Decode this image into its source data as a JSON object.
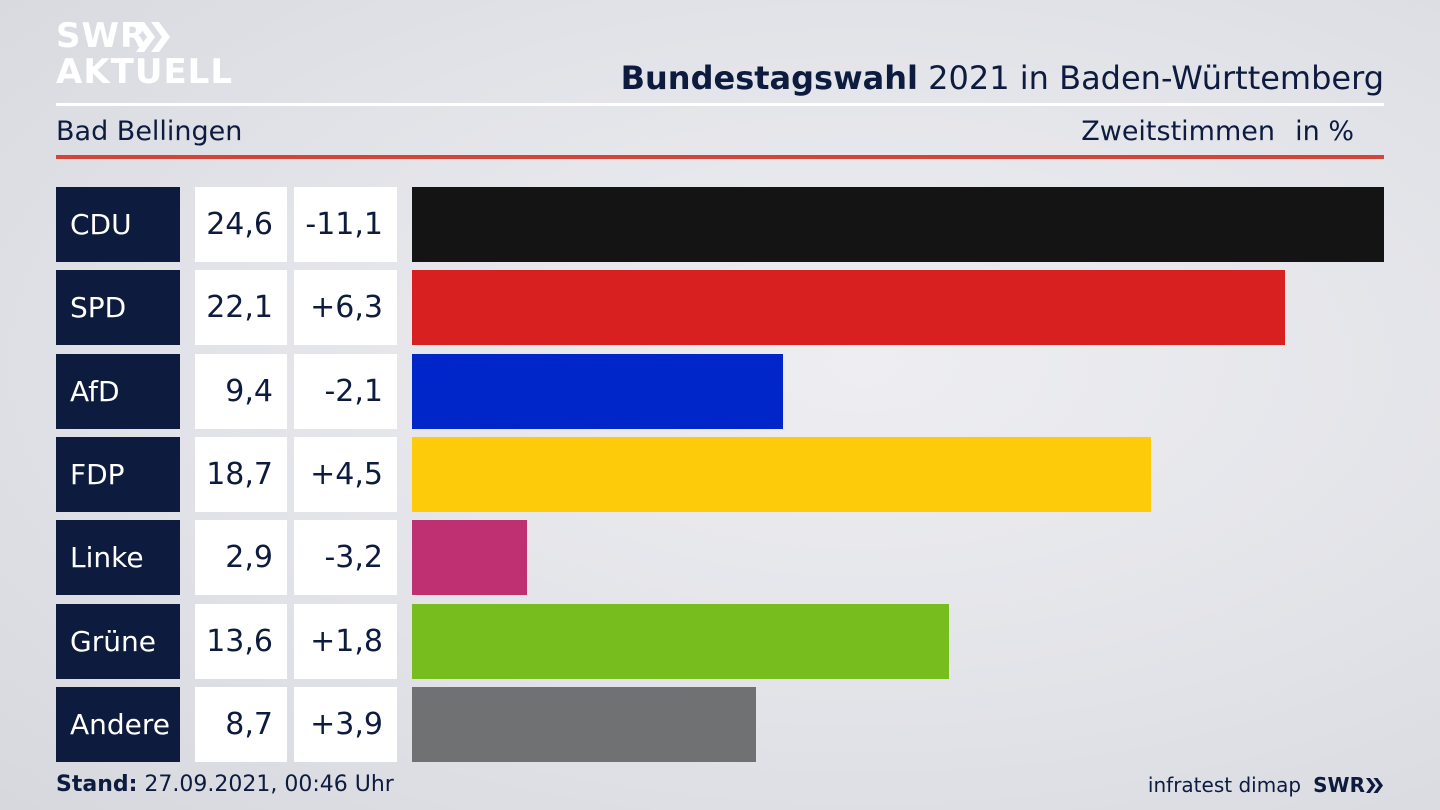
{
  "brand": {
    "line1": "SWR",
    "line2": "AKTUELL"
  },
  "header": {
    "title_bold": "Bundestagswahl",
    "title_rest": " 2021 in Baden-Württemberg",
    "region": "Bad Bellingen",
    "measure": "Zweitstimmen",
    "unit": "in %"
  },
  "colors": {
    "navy": "#0d1b3e",
    "accent_rule": "#d2453a"
  },
  "chart_data": {
    "type": "bar",
    "orientation": "horizontal",
    "categories": [
      "CDU",
      "SPD",
      "AfD",
      "FDP",
      "Linke",
      "Grüne",
      "Andere"
    ],
    "values": [
      24.6,
      22.1,
      9.4,
      18.7,
      2.9,
      13.6,
      8.7
    ],
    "value_labels": [
      "24,6",
      "22,1",
      "9,4",
      "18,7",
      "2,9",
      "13,6",
      "8,7"
    ],
    "change_labels": [
      "-11,1",
      "+6,3",
      "-2,1",
      "+4,5",
      "-3,2",
      "+1,8",
      "+3,9"
    ],
    "changes": [
      -11.1,
      6.3,
      -2.1,
      4.5,
      -3.2,
      1.8,
      3.9
    ],
    "bar_colors": [
      "#141414",
      "#d92020",
      "#0025c8",
      "#fdcb0a",
      "#bf3073",
      "#78bd1e",
      "#707173"
    ],
    "xlim": [
      0,
      24.6
    ]
  },
  "footer": {
    "stand_label": "Stand:",
    "stand_value": " 27.09.2021, 00:46 Uhr",
    "source": "infratest dimap",
    "swr": "SWR"
  }
}
